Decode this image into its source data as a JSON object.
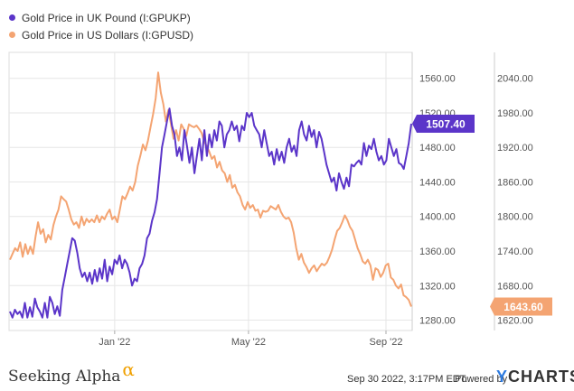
{
  "chart_data": {
    "type": "line",
    "x_tick_labels": [
      "Jan '22",
      "May '22",
      "Sep '22"
    ],
    "left_axis": {
      "ticks": [
        1280,
        1320,
        1360,
        1400,
        1440,
        1480,
        1520,
        1560
      ],
      "tick_labels": [
        "1280.00",
        "1320.00",
        "1360.00",
        "1400.00",
        "1440.00",
        "1480.00",
        "1520.00",
        "1560.00"
      ],
      "ylim": [
        1268,
        1590
      ]
    },
    "right_axis": {
      "ticks": [
        1620,
        1680,
        1740,
        1800,
        1860,
        1920,
        1980,
        2040
      ],
      "tick_labels": [
        "1620.00",
        "1680.00",
        "1740.00",
        "1800.00",
        "1860.00",
        "1920.00",
        "1980.00",
        "2040.00"
      ],
      "ylim": [
        1602,
        2085
      ]
    },
    "series": [
      {
        "name": "Gold Price in UK Pound (I:GPUKP)",
        "axis": "left",
        "color": "#5b35c9",
        "last_label": "1507.40",
        "values": [
          1290,
          1283,
          1292,
          1287,
          1290,
          1283,
          1300,
          1283,
          1295,
          1284,
          1305,
          1295,
          1290,
          1283,
          1300,
          1283,
          1307,
          1300,
          1287,
          1296,
          1285,
          1315,
          1330,
          1345,
          1360,
          1375,
          1372,
          1358,
          1340,
          1330,
          1335,
          1325,
          1335,
          1322,
          1338,
          1325,
          1340,
          1328,
          1350,
          1325,
          1342,
          1333,
          1350,
          1345,
          1355,
          1340,
          1350,
          1345,
          1335,
          1320,
          1328,
          1325,
          1340,
          1345,
          1355,
          1375,
          1380,
          1395,
          1405,
          1420,
          1450,
          1480,
          1495,
          1510,
          1525,
          1505,
          1495,
          1470,
          1480,
          1465,
          1500,
          1482,
          1462,
          1480,
          1450,
          1470,
          1490,
          1465,
          1500,
          1470,
          1495,
          1480,
          1500,
          1488,
          1510,
          1505,
          1480,
          1495,
          1500,
          1510,
          1500,
          1505,
          1487,
          1505,
          1500,
          1520,
          1515,
          1520,
          1505,
          1500,
          1495,
          1480,
          1500,
          1485,
          1470,
          1475,
          1460,
          1478,
          1465,
          1475,
          1462,
          1480,
          1490,
          1475,
          1482,
          1470,
          1500,
          1510,
          1495,
          1488,
          1505,
          1492,
          1500,
          1480,
          1498,
          1490,
          1475,
          1460,
          1450,
          1440,
          1445,
          1430,
          1450,
          1440,
          1432,
          1445,
          1435,
          1460,
          1458,
          1462,
          1465,
          1460,
          1485,
          1470,
          1482,
          1478,
          1490,
          1475,
          1465,
          1470,
          1460,
          1465,
          1490,
          1480,
          1470,
          1478,
          1462,
          1460,
          1455,
          1470,
          1485,
          1507.4
        ]
      },
      {
        "name": "Gold Price in US Dollars (I:GPUSD)",
        "axis": "right",
        "color": "#f4a472",
        "last_label": "1643.60",
        "values": [
          1725,
          1735,
          1745,
          1740,
          1755,
          1730,
          1752,
          1735,
          1748,
          1735,
          1765,
          1790,
          1770,
          1778,
          1755,
          1768,
          1760,
          1785,
          1800,
          1812,
          1835,
          1830,
          1826,
          1812,
          1795,
          1786,
          1790,
          1780,
          1800,
          1785,
          1796,
          1790,
          1795,
          1790,
          1802,
          1790,
          1800,
          1795,
          1805,
          1812,
          1795,
          1800,
          1790,
          1812,
          1835,
          1830,
          1840,
          1852,
          1845,
          1860,
          1888,
          1905,
          1925,
          1915,
          1932,
          1955,
          1978,
          2005,
          2050,
          2015,
          1995,
          1965,
          1985,
          1960,
          1935,
          1950,
          1932,
          1960,
          1952,
          1940,
          1960,
          1957,
          1955,
          1958,
          1952,
          1945,
          1930,
          1922,
          1912,
          1900,
          1905,
          1885,
          1895,
          1880,
          1875,
          1860,
          1872,
          1850,
          1855,
          1842,
          1835,
          1820,
          1812,
          1825,
          1815,
          1820,
          1810,
          1812,
          1798,
          1810,
          1808,
          1810,
          1818,
          1815,
          1812,
          1820,
          1808,
          1800,
          1796,
          1798,
          1790,
          1772,
          1745,
          1725,
          1735,
          1720,
          1712,
          1702,
          1710,
          1715,
          1705,
          1712,
          1718,
          1715,
          1720,
          1730,
          1742,
          1760,
          1775,
          1780,
          1790,
          1802,
          1794,
          1782,
          1775,
          1760,
          1745,
          1735,
          1722,
          1718,
          1725,
          1715,
          1690,
          1710,
          1707,
          1695,
          1702,
          1715,
          1718,
          1694,
          1690,
          1680,
          1675,
          1682,
          1663,
          1660,
          1655,
          1643.6
        ]
      }
    ],
    "grid": true,
    "legend_position": "top-left"
  },
  "footer": {
    "brand": "Seeking Alpha",
    "brand_symbol": "α",
    "timestamp": "Sep 30 2022, 3:17PM EDT.",
    "powered_by": "Powered by",
    "ycharts_y": "Y",
    "ycharts_rest": "CHARTS"
  }
}
